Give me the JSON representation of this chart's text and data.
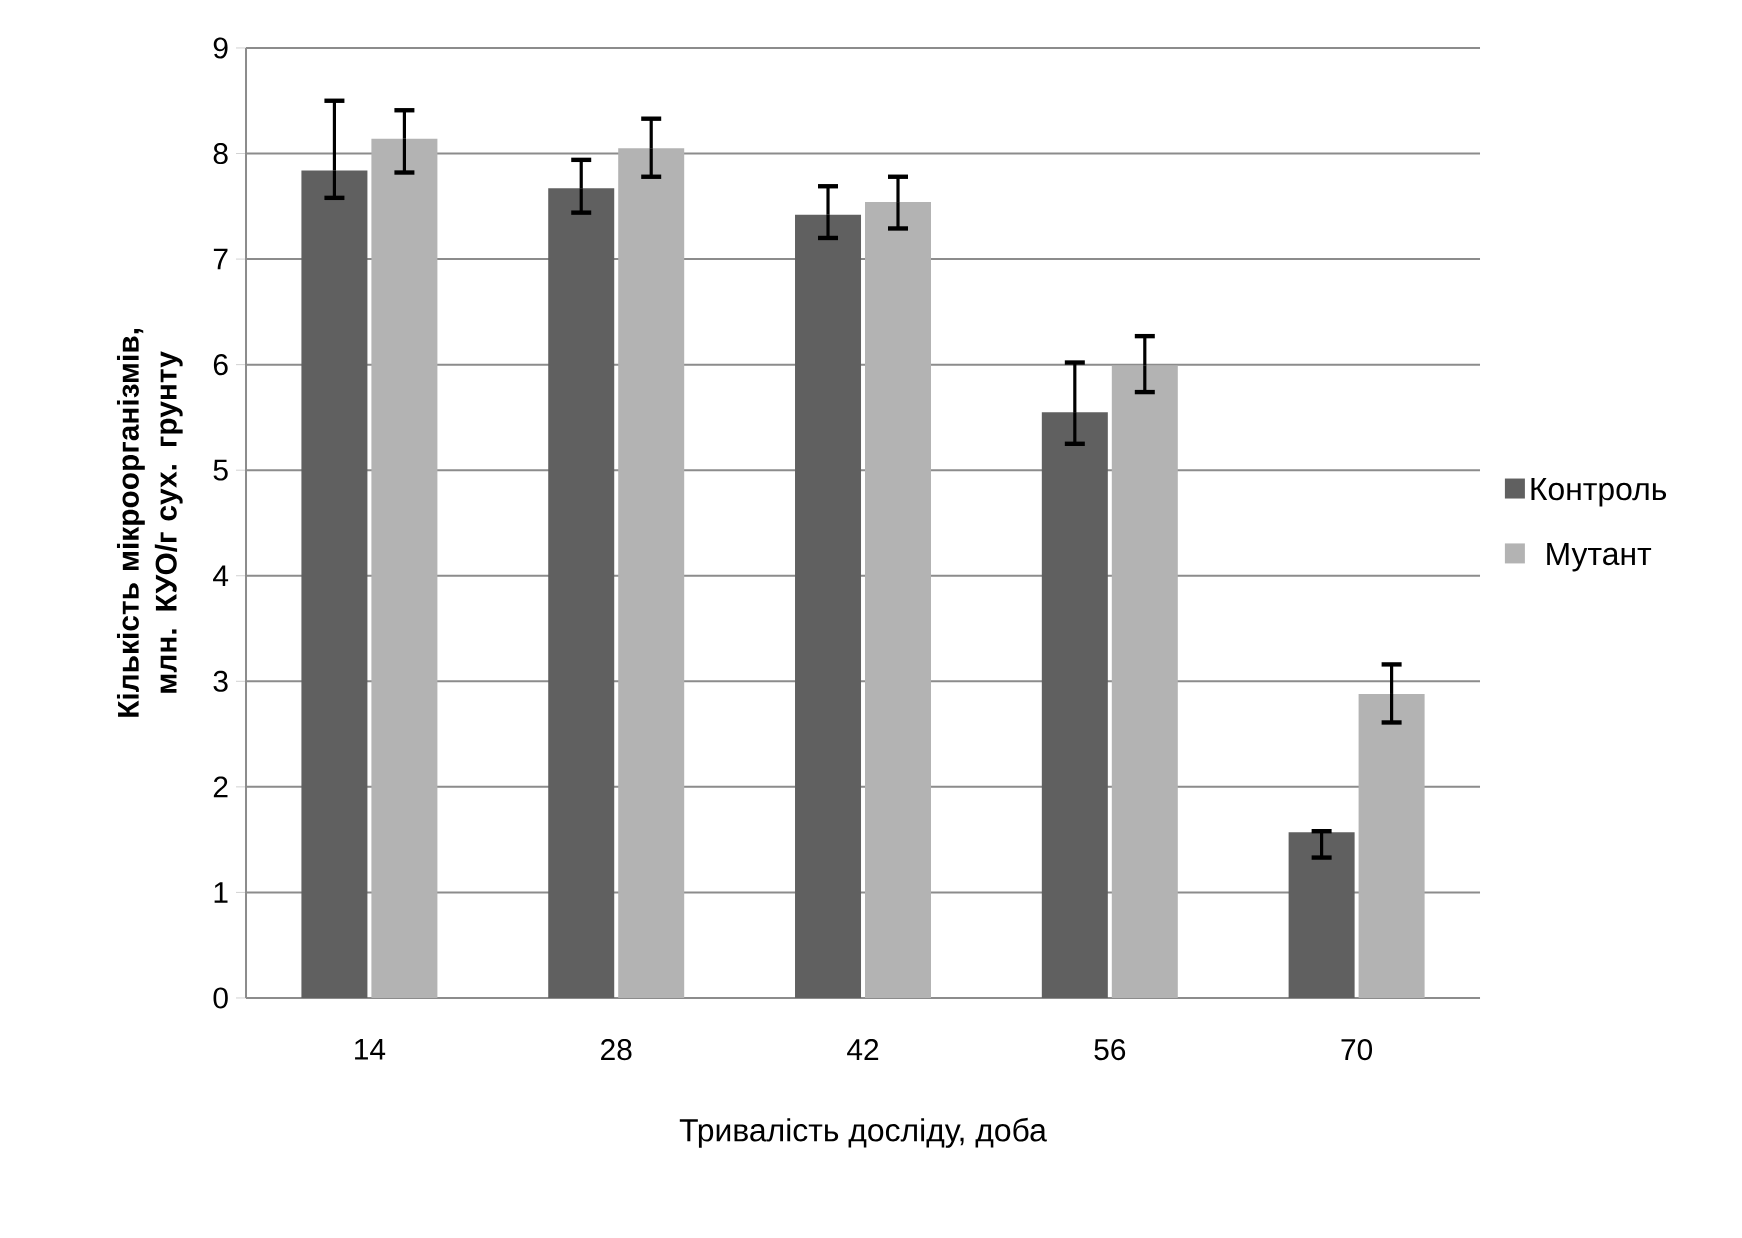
{
  "chart_data": {
    "type": "bar",
    "xlabel": "Тривалість досліду, доба",
    "ylabel": "Кількість мікроорганізмів, млн. КУО/г сух. грунту",
    "categories": [
      "14",
      "28",
      "42",
      "56",
      "70"
    ],
    "series": [
      {
        "name": "Контроль",
        "color": "#606060",
        "values": [
          7.84,
          7.67,
          7.42,
          5.55,
          1.57
        ],
        "errors": [
          [
            7.58,
            8.5
          ],
          [
            7.44,
            7.94
          ],
          [
            7.2,
            7.69
          ],
          [
            5.25,
            6.02
          ],
          [
            1.33,
            1.58
          ]
        ]
      },
      {
        "name": "Мутант",
        "color": "#b3b3b3",
        "values": [
          8.14,
          8.05,
          7.54,
          5.99,
          2.88
        ],
        "errors": [
          [
            7.82,
            8.41
          ],
          [
            7.78,
            8.33
          ],
          [
            7.29,
            7.78
          ],
          [
            5.74,
            6.27
          ],
          [
            2.61,
            3.16
          ]
        ]
      }
    ],
    "ylim": [
      0,
      9
    ],
    "yticks": [
      0,
      1,
      2,
      3,
      4,
      5,
      6,
      7,
      8,
      9
    ],
    "grid": "y",
    "legend": "right"
  }
}
